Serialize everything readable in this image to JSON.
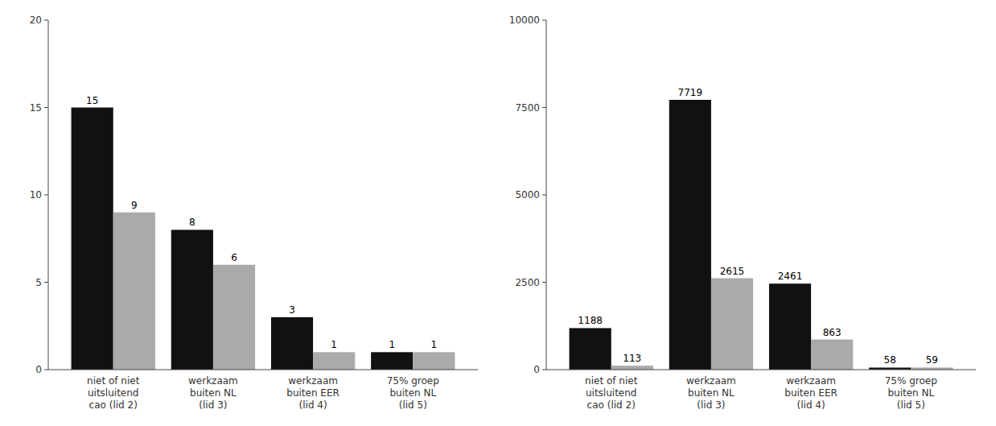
{
  "chart_data": [
    {
      "type": "bar",
      "categories": [
        "niet of niet\nuitsluitend\ncao (lid 2)",
        "werkzaam\nbuiten NL\n(lid 3)",
        "werkzaam\nbuiten EER\n(lid 4)",
        "75% groep\nbuiten NL\n(lid 5)"
      ],
      "series": [
        {
          "color": "#111111",
          "values": [
            15,
            8,
            3,
            1
          ]
        },
        {
          "color": "#aaaaaa",
          "values": [
            9,
            6,
            1,
            1
          ]
        }
      ],
      "ylim": [
        0,
        20
      ],
      "yticks": [
        0,
        5,
        10,
        15,
        20
      ],
      "grid": false,
      "data_labels": true
    },
    {
      "type": "bar",
      "categories": [
        "niet of niet\nuitsluitend\ncao (lid 2)",
        "werkzaam\nbuiten NL\n(lid 3)",
        "werkzaam\nbuiten EER\n(lid 4)",
        "75% groep\nbuiten NL\n(lid 5)"
      ],
      "series": [
        {
          "color": "#111111",
          "values": [
            1188,
            7719,
            2461,
            58
          ]
        },
        {
          "color": "#aaaaaa",
          "values": [
            113,
            2615,
            863,
            59
          ]
        }
      ],
      "ylim": [
        0,
        10000
      ],
      "yticks": [
        0,
        2500,
        5000,
        7500,
        10000
      ],
      "grid": false,
      "data_labels": true
    }
  ]
}
